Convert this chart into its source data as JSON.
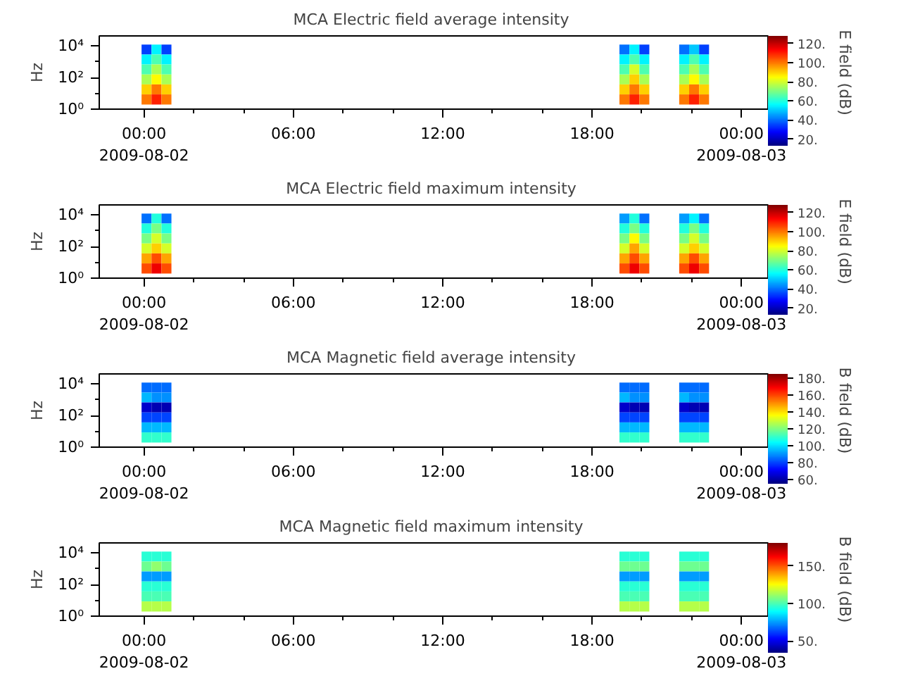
{
  "chart_data": [
    {
      "type": "heatmap",
      "title": "MCA  Electric field average intensity",
      "ylabel": "Hz",
      "clabel": "E field (dB)",
      "log": "y",
      "x": [
        "2009-08-02T00:06",
        "2009-08-02T00:30",
        "2009-08-02T00:54",
        "2009-08-02T01:18",
        "2009-08-02T01:42",
        "2009-08-02T02:06",
        "2009-08-02T02:30",
        "2009-08-02T02:54",
        "2009-08-02T03:18",
        "2009-08-02T03:42",
        "2009-08-02T04:06",
        "2009-08-02T04:30",
        "2009-08-02T04:54",
        "2009-08-02T05:18",
        "2009-08-02T05:42",
        "2009-08-02T06:06",
        "2009-08-02T06:30",
        "2009-08-02T06:54",
        "2009-08-02T07:18",
        "2009-08-02T07:42",
        "2009-08-02T08:06",
        "2009-08-02T08:30",
        "2009-08-02T08:54",
        "2009-08-02T09:18",
        "2009-08-02T09:42",
        "2009-08-02T10:06",
        "2009-08-02T10:30",
        "2009-08-02T10:54",
        "2009-08-02T11:18",
        "2009-08-02T11:42",
        "2009-08-02T12:06",
        "2009-08-02T12:30",
        "2009-08-02T12:54",
        "2009-08-02T13:18",
        "2009-08-02T13:42",
        "2009-08-02T14:06",
        "2009-08-02T14:30",
        "2009-08-02T14:54",
        "2009-08-02T15:18",
        "2009-08-02T15:42",
        "2009-08-02T16:06",
        "2009-08-02T16:30",
        "2009-08-02T16:54",
        "2009-08-02T17:18",
        "2009-08-02T17:42",
        "2009-08-02T18:06",
        "2009-08-02T18:30",
        "2009-08-02T18:54",
        "2009-08-02T19:18",
        "2009-08-02T19:42",
        "2009-08-02T20:06",
        "2009-08-02T20:30",
        "2009-08-02T20:54",
        "2009-08-02T21:18",
        "2009-08-02T21:42",
        "2009-08-02T22:06",
        "2009-08-02T22:30"
      ],
      "y": [
        6000,
        1400,
        330,
        76,
        18,
        4.1
      ],
      "cells": [
        [
          35,
          55,
          35,
          null,
          null,
          null,
          null,
          null,
          null,
          null,
          null,
          null,
          null,
          null,
          null,
          null,
          null,
          null,
          null,
          null,
          null,
          null,
          null,
          null,
          null,
          null,
          null,
          null,
          null,
          null,
          null,
          null,
          null,
          null,
          null,
          null,
          null,
          null,
          null,
          null,
          null,
          null,
          null,
          null,
          null,
          null,
          null,
          null,
          40,
          55,
          35,
          null,
          null,
          null,
          40,
          50,
          35
        ],
        [
          55,
          65,
          55,
          null,
          null,
          null,
          null,
          null,
          null,
          null,
          null,
          null,
          null,
          null,
          null,
          null,
          null,
          null,
          null,
          null,
          null,
          null,
          null,
          null,
          null,
          null,
          null,
          null,
          null,
          null,
          null,
          null,
          null,
          null,
          null,
          null,
          null,
          null,
          null,
          null,
          null,
          null,
          null,
          null,
          null,
          null,
          null,
          null,
          55,
          65,
          55,
          null,
          null,
          null,
          55,
          65,
          55
        ],
        [
          65,
          75,
          65,
          null,
          null,
          null,
          null,
          null,
          null,
          null,
          null,
          null,
          null,
          null,
          null,
          null,
          null,
          null,
          null,
          null,
          null,
          null,
          null,
          null,
          null,
          null,
          null,
          null,
          null,
          null,
          null,
          null,
          null,
          null,
          null,
          null,
          null,
          null,
          null,
          null,
          null,
          null,
          null,
          null,
          null,
          null,
          null,
          null,
          65,
          80,
          65,
          null,
          null,
          null,
          65,
          75,
          65
        ],
        [
          75,
          85,
          75,
          null,
          null,
          null,
          null,
          null,
          null,
          null,
          null,
          null,
          null,
          null,
          null,
          null,
          null,
          null,
          null,
          null,
          null,
          null,
          null,
          null,
          null,
          null,
          null,
          null,
          null,
          null,
          null,
          null,
          null,
          null,
          null,
          null,
          null,
          null,
          null,
          null,
          null,
          null,
          null,
          null,
          null,
          null,
          null,
          null,
          75,
          90,
          75,
          null,
          null,
          null,
          75,
          85,
          75
        ],
        [
          90,
          100,
          90,
          null,
          null,
          null,
          null,
          null,
          null,
          null,
          null,
          null,
          null,
          null,
          null,
          null,
          null,
          null,
          null,
          null,
          null,
          null,
          null,
          null,
          null,
          null,
          null,
          null,
          null,
          null,
          null,
          null,
          null,
          null,
          null,
          null,
          null,
          null,
          null,
          null,
          null,
          null,
          null,
          null,
          null,
          null,
          null,
          null,
          90,
          100,
          90,
          null,
          null,
          null,
          90,
          100,
          90
        ],
        [
          100,
          110,
          100,
          null,
          null,
          null,
          null,
          null,
          null,
          null,
          null,
          null,
          null,
          null,
          null,
          null,
          null,
          null,
          null,
          null,
          null,
          null,
          null,
          null,
          null,
          null,
          null,
          null,
          null,
          null,
          null,
          null,
          null,
          null,
          null,
          null,
          null,
          null,
          null,
          null,
          null,
          null,
          null,
          null,
          null,
          null,
          null,
          null,
          100,
          110,
          100,
          null,
          null,
          null,
          100,
          110,
          100
        ]
      ],
      "clim": [
        13,
        128
      ],
      "cticks": [
        {
          "value": 20,
          "label": "20."
        },
        {
          "value": 40,
          "label": "40."
        },
        {
          "value": 60,
          "label": "60."
        },
        {
          "value": 80,
          "label": "80."
        },
        {
          "value": 100,
          "label": "100."
        },
        {
          "value": 120,
          "label": "120."
        }
      ],
      "xlim": [
        "2009-08-01T22:12",
        "2009-08-03T01:04"
      ],
      "xticks": [
        {
          "value": "2009-08-02T00:00",
          "label": "00:00\n2009-08-02"
        },
        {
          "value": "2009-08-02T06:00",
          "label": "06:00"
        },
        {
          "value": "2009-08-02T12:00",
          "label": "12:00"
        },
        {
          "value": "2009-08-02T18:00",
          "label": "18:00"
        },
        {
          "value": "2009-08-03T00:00",
          "label": "00:00\n2009-08-03"
        }
      ],
      "ylim": [
        1,
        44000
      ],
      "yticks": [
        {
          "value": 1,
          "label": "10⁰"
        },
        {
          "value": 10,
          "label": null
        },
        {
          "value": 100,
          "label": "10²"
        },
        {
          "value": 1000,
          "label": null
        },
        {
          "value": 10000,
          "label": "10⁴"
        }
      ]
    },
    {
      "type": "heatmap",
      "title": "MCA  Electric field maximum intensity",
      "ylabel": "Hz",
      "clabel": "E field (dB)",
      "log": "y",
      "x": [
        "2009-08-02T00:06",
        "2009-08-02T00:30",
        "2009-08-02T00:54",
        "2009-08-02T01:18",
        "2009-08-02T01:42",
        "2009-08-02T02:06",
        "2009-08-02T02:30",
        "2009-08-02T02:54",
        "2009-08-02T03:18",
        "2009-08-02T03:42",
        "2009-08-02T04:06",
        "2009-08-02T04:30",
        "2009-08-02T04:54",
        "2009-08-02T05:18",
        "2009-08-02T05:42",
        "2009-08-02T06:06",
        "2009-08-02T06:30",
        "2009-08-02T06:54",
        "2009-08-02T07:18",
        "2009-08-02T07:42",
        "2009-08-02T08:06",
        "2009-08-02T08:30",
        "2009-08-02T08:54",
        "2009-08-02T09:18",
        "2009-08-02T09:42",
        "2009-08-02T10:06",
        "2009-08-02T10:30",
        "2009-08-02T10:54",
        "2009-08-02T11:18",
        "2009-08-02T11:42",
        "2009-08-02T12:06",
        "2009-08-02T12:30",
        "2009-08-02T12:54",
        "2009-08-02T13:18",
        "2009-08-02T13:42",
        "2009-08-02T14:06",
        "2009-08-02T14:30",
        "2009-08-02T14:54",
        "2009-08-02T15:18",
        "2009-08-02T15:42",
        "2009-08-02T16:06",
        "2009-08-02T16:30",
        "2009-08-02T16:54",
        "2009-08-02T17:18",
        "2009-08-02T17:42",
        "2009-08-02T18:06",
        "2009-08-02T18:30",
        "2009-08-02T18:54",
        "2009-08-02T19:18",
        "2009-08-02T19:42",
        "2009-08-02T20:06",
        "2009-08-02T20:30",
        "2009-08-02T20:54",
        "2009-08-02T21:18",
        "2009-08-02T21:42",
        "2009-08-02T22:06",
        "2009-08-02T22:30"
      ],
      "y": [
        6000,
        1400,
        330,
        76,
        18,
        4.1
      ],
      "cells": [
        [
          40,
          60,
          40,
          null,
          null,
          null,
          null,
          null,
          null,
          null,
          null,
          null,
          null,
          null,
          null,
          null,
          null,
          null,
          null,
          null,
          null,
          null,
          null,
          null,
          null,
          null,
          null,
          null,
          null,
          null,
          null,
          null,
          null,
          null,
          null,
          null,
          null,
          null,
          null,
          null,
          null,
          null,
          null,
          null,
          null,
          null,
          null,
          null,
          45,
          60,
          40,
          null,
          null,
          null,
          45,
          55,
          40
        ],
        [
          60,
          70,
          60,
          null,
          null,
          null,
          null,
          null,
          null,
          null,
          null,
          null,
          null,
          null,
          null,
          null,
          null,
          null,
          null,
          null,
          null,
          null,
          null,
          null,
          null,
          null,
          null,
          null,
          null,
          null,
          null,
          null,
          null,
          null,
          null,
          null,
          null,
          null,
          null,
          null,
          null,
          null,
          null,
          null,
          null,
          null,
          null,
          null,
          60,
          70,
          60,
          null,
          null,
          null,
          60,
          70,
          60
        ],
        [
          70,
          80,
          70,
          null,
          null,
          null,
          null,
          null,
          null,
          null,
          null,
          null,
          null,
          null,
          null,
          null,
          null,
          null,
          null,
          null,
          null,
          null,
          null,
          null,
          null,
          null,
          null,
          null,
          null,
          null,
          null,
          null,
          null,
          null,
          null,
          null,
          null,
          null,
          null,
          null,
          null,
          null,
          null,
          null,
          null,
          null,
          null,
          null,
          70,
          85,
          70,
          null,
          null,
          null,
          70,
          80,
          70
        ],
        [
          80,
          90,
          80,
          null,
          null,
          null,
          null,
          null,
          null,
          null,
          null,
          null,
          null,
          null,
          null,
          null,
          null,
          null,
          null,
          null,
          null,
          null,
          null,
          null,
          null,
          null,
          null,
          null,
          null,
          null,
          null,
          null,
          null,
          null,
          null,
          null,
          null,
          null,
          null,
          null,
          null,
          null,
          null,
          null,
          null,
          null,
          null,
          null,
          80,
          95,
          80,
          null,
          null,
          null,
          80,
          90,
          80
        ],
        [
          95,
          105,
          95,
          null,
          null,
          null,
          null,
          null,
          null,
          null,
          null,
          null,
          null,
          null,
          null,
          null,
          null,
          null,
          null,
          null,
          null,
          null,
          null,
          null,
          null,
          null,
          null,
          null,
          null,
          null,
          null,
          null,
          null,
          null,
          null,
          null,
          null,
          null,
          null,
          null,
          null,
          null,
          null,
          null,
          null,
          null,
          null,
          null,
          95,
          105,
          95,
          null,
          null,
          null,
          95,
          105,
          95
        ],
        [
          105,
          115,
          105,
          null,
          null,
          null,
          null,
          null,
          null,
          null,
          null,
          null,
          null,
          null,
          null,
          null,
          null,
          null,
          null,
          null,
          null,
          null,
          null,
          null,
          null,
          null,
          null,
          null,
          null,
          null,
          null,
          null,
          null,
          null,
          null,
          null,
          null,
          null,
          null,
          null,
          null,
          null,
          null,
          null,
          null,
          null,
          null,
          null,
          105,
          115,
          105,
          null,
          null,
          null,
          105,
          115,
          105
        ]
      ],
      "clim": [
        13,
        128
      ],
      "cticks": [
        {
          "value": 20,
          "label": "20."
        },
        {
          "value": 40,
          "label": "40."
        },
        {
          "value": 60,
          "label": "60."
        },
        {
          "value": 80,
          "label": "80."
        },
        {
          "value": 100,
          "label": "100."
        },
        {
          "value": 120,
          "label": "120."
        }
      ],
      "xlim": [
        "2009-08-01T22:12",
        "2009-08-03T01:04"
      ],
      "xticks": [
        {
          "value": "2009-08-02T00:00",
          "label": "00:00\n2009-08-02"
        },
        {
          "value": "2009-08-02T06:00",
          "label": "06:00"
        },
        {
          "value": "2009-08-02T12:00",
          "label": "12:00"
        },
        {
          "value": "2009-08-02T18:00",
          "label": "18:00"
        },
        {
          "value": "2009-08-03T00:00",
          "label": "00:00\n2009-08-03"
        }
      ],
      "ylim": [
        1,
        44000
      ],
      "yticks": [
        {
          "value": 1,
          "label": "10⁰"
        },
        {
          "value": 10,
          "label": null
        },
        {
          "value": 100,
          "label": "10²"
        },
        {
          "value": 1000,
          "label": null
        },
        {
          "value": 10000,
          "label": "10⁴"
        }
      ]
    },
    {
      "type": "heatmap",
      "title": "MCA  Magnetic field average intensity",
      "ylabel": "Hz",
      "clabel": "B field (dB)",
      "log": "y",
      "x": [
        "2009-08-02T00:06",
        "2009-08-02T00:30",
        "2009-08-02T00:54",
        "2009-08-02T01:18",
        "2009-08-02T01:42",
        "2009-08-02T02:06",
        "2009-08-02T02:30",
        "2009-08-02T02:54",
        "2009-08-02T03:18",
        "2009-08-02T03:42",
        "2009-08-02T04:06",
        "2009-08-02T04:30",
        "2009-08-02T04:54",
        "2009-08-02T05:18",
        "2009-08-02T05:42",
        "2009-08-02T06:06",
        "2009-08-02T06:30",
        "2009-08-02T06:54",
        "2009-08-02T07:18",
        "2009-08-02T07:42",
        "2009-08-02T08:06",
        "2009-08-02T08:30",
        "2009-08-02T08:54",
        "2009-08-02T09:18",
        "2009-08-02T09:42",
        "2009-08-02T10:06",
        "2009-08-02T10:30",
        "2009-08-02T10:54",
        "2009-08-02T11:18",
        "2009-08-02T11:42",
        "2009-08-02T12:06",
        "2009-08-02T12:30",
        "2009-08-02T12:54",
        "2009-08-02T13:18",
        "2009-08-02T13:42",
        "2009-08-02T14:06",
        "2009-08-02T14:30",
        "2009-08-02T14:54",
        "2009-08-02T15:18",
        "2009-08-02T15:42",
        "2009-08-02T16:06",
        "2009-08-02T16:30",
        "2009-08-02T16:54",
        "2009-08-02T17:18",
        "2009-08-02T17:42",
        "2009-08-02T18:06",
        "2009-08-02T18:30",
        "2009-08-02T18:54",
        "2009-08-02T19:18",
        "2009-08-02T19:42",
        "2009-08-02T20:06",
        "2009-08-02T20:30",
        "2009-08-02T20:54",
        "2009-08-02T21:18",
        "2009-08-02T21:42",
        "2009-08-02T22:06",
        "2009-08-02T22:30"
      ],
      "y": [
        6000,
        1400,
        330,
        76,
        18,
        4.1
      ],
      "cells": [
        [
          85,
          85,
          85,
          null,
          null,
          null,
          null,
          null,
          null,
          null,
          null,
          null,
          null,
          null,
          null,
          null,
          null,
          null,
          null,
          null,
          null,
          null,
          null,
          null,
          null,
          null,
          null,
          null,
          null,
          null,
          null,
          null,
          null,
          null,
          null,
          null,
          null,
          null,
          null,
          null,
          null,
          null,
          null,
          null,
          null,
          null,
          null,
          null,
          85,
          85,
          85,
          null,
          null,
          null,
          85,
          85,
          85
        ],
        [
          95,
          90,
          90,
          null,
          null,
          null,
          null,
          null,
          null,
          null,
          null,
          null,
          null,
          null,
          null,
          null,
          null,
          null,
          null,
          null,
          null,
          null,
          null,
          null,
          null,
          null,
          null,
          null,
          null,
          null,
          null,
          null,
          null,
          null,
          null,
          null,
          null,
          null,
          null,
          null,
          null,
          null,
          null,
          null,
          null,
          null,
          null,
          null,
          95,
          90,
          90,
          null,
          null,
          null,
          95,
          90,
          90
        ],
        [
          65,
          62,
          62,
          null,
          null,
          null,
          null,
          null,
          null,
          null,
          null,
          null,
          null,
          null,
          null,
          null,
          null,
          null,
          null,
          null,
          null,
          null,
          null,
          null,
          null,
          null,
          null,
          null,
          null,
          null,
          null,
          null,
          null,
          null,
          null,
          null,
          null,
          null,
          null,
          null,
          null,
          null,
          null,
          null,
          null,
          null,
          null,
          null,
          65,
          62,
          62,
          null,
          null,
          null,
          65,
          62,
          62
        ],
        [
          80,
          80,
          80,
          null,
          null,
          null,
          null,
          null,
          null,
          null,
          null,
          null,
          null,
          null,
          null,
          null,
          null,
          null,
          null,
          null,
          null,
          null,
          null,
          null,
          null,
          null,
          null,
          null,
          null,
          null,
          null,
          null,
          null,
          null,
          null,
          null,
          null,
          null,
          null,
          null,
          null,
          null,
          null,
          null,
          null,
          null,
          null,
          null,
          80,
          80,
          80,
          null,
          null,
          null,
          80,
          80,
          80
        ],
        [
          95,
          95,
          95,
          null,
          null,
          null,
          null,
          null,
          null,
          null,
          null,
          null,
          null,
          null,
          null,
          null,
          null,
          null,
          null,
          null,
          null,
          null,
          null,
          null,
          null,
          null,
          null,
          null,
          null,
          null,
          null,
          null,
          null,
          null,
          null,
          null,
          null,
          null,
          null,
          null,
          null,
          null,
          null,
          null,
          null,
          null,
          null,
          null,
          95,
          95,
          95,
          null,
          null,
          null,
          95,
          95,
          95
        ],
        [
          110,
          110,
          110,
          null,
          null,
          null,
          null,
          null,
          null,
          null,
          null,
          null,
          null,
          null,
          null,
          null,
          null,
          null,
          null,
          null,
          null,
          null,
          null,
          null,
          null,
          null,
          null,
          null,
          null,
          null,
          null,
          null,
          null,
          null,
          null,
          null,
          null,
          null,
          null,
          null,
          null,
          null,
          null,
          null,
          null,
          null,
          null,
          null,
          110,
          110,
          110,
          null,
          null,
          null,
          110,
          110,
          110
        ]
      ],
      "clim": [
        55,
        185
      ],
      "cticks": [
        {
          "value": 60,
          "label": "60."
        },
        {
          "value": 80,
          "label": "80."
        },
        {
          "value": 100,
          "label": "100."
        },
        {
          "value": 120,
          "label": "120."
        },
        {
          "value": 140,
          "label": "140."
        },
        {
          "value": 160,
          "label": "160."
        },
        {
          "value": 180,
          "label": "180."
        }
      ],
      "xlim": [
        "2009-08-01T22:12",
        "2009-08-03T01:04"
      ],
      "xticks": [
        {
          "value": "2009-08-02T00:00",
          "label": "00:00\n2009-08-02"
        },
        {
          "value": "2009-08-02T06:00",
          "label": "06:00"
        },
        {
          "value": "2009-08-02T12:00",
          "label": "12:00"
        },
        {
          "value": "2009-08-02T18:00",
          "label": "18:00"
        },
        {
          "value": "2009-08-03T00:00",
          "label": "00:00\n2009-08-03"
        }
      ],
      "ylim": [
        1,
        44000
      ],
      "yticks": [
        {
          "value": 1,
          "label": "10⁰"
        },
        {
          "value": 10,
          "label": null
        },
        {
          "value": 100,
          "label": "10²"
        },
        {
          "value": 1000,
          "label": null
        },
        {
          "value": 10000,
          "label": "10⁴"
        }
      ]
    },
    {
      "type": "heatmap",
      "title": "MCA  Magnetic field maximum intensity",
      "ylabel": "Hz",
      "clabel": "B field (dB)",
      "log": "y",
      "x": [
        "2009-08-02T00:06",
        "2009-08-02T00:30",
        "2009-08-02T00:54",
        "2009-08-02T01:18",
        "2009-08-02T01:42",
        "2009-08-02T02:06",
        "2009-08-02T02:30",
        "2009-08-02T02:54",
        "2009-08-02T03:18",
        "2009-08-02T03:42",
        "2009-08-02T04:06",
        "2009-08-02T04:30",
        "2009-08-02T04:54",
        "2009-08-02T05:18",
        "2009-08-02T05:42",
        "2009-08-02T06:06",
        "2009-08-02T06:30",
        "2009-08-02T06:54",
        "2009-08-02T07:18",
        "2009-08-02T07:42",
        "2009-08-02T08:06",
        "2009-08-02T08:30",
        "2009-08-02T08:54",
        "2009-08-02T09:18",
        "2009-08-02T09:42",
        "2009-08-02T10:06",
        "2009-08-02T10:30",
        "2009-08-02T10:54",
        "2009-08-02T11:18",
        "2009-08-02T11:42",
        "2009-08-02T12:06",
        "2009-08-02T12:30",
        "2009-08-02T12:54",
        "2009-08-02T13:18",
        "2009-08-02T13:42",
        "2009-08-02T14:06",
        "2009-08-02T14:30",
        "2009-08-02T14:54",
        "2009-08-02T15:18",
        "2009-08-02T15:42",
        "2009-08-02T16:06",
        "2009-08-02T16:30",
        "2009-08-02T16:54",
        "2009-08-02T17:18",
        "2009-08-02T17:42",
        "2009-08-02T18:06",
        "2009-08-02T18:30",
        "2009-08-02T18:54",
        "2009-08-02T19:18",
        "2009-08-02T19:42",
        "2009-08-02T20:06",
        "2009-08-02T20:30",
        "2009-08-02T20:54",
        "2009-08-02T21:18",
        "2009-08-02T21:42",
        "2009-08-02T22:06",
        "2009-08-02T22:30"
      ],
      "y": [
        6000,
        1400,
        330,
        76,
        18,
        4.1
      ],
      "cells": [
        [
          95,
          95,
          95,
          null,
          null,
          null,
          null,
          null,
          null,
          null,
          null,
          null,
          null,
          null,
          null,
          null,
          null,
          null,
          null,
          null,
          null,
          null,
          null,
          null,
          null,
          null,
          null,
          null,
          null,
          null,
          null,
          null,
          null,
          null,
          null,
          null,
          null,
          null,
          null,
          null,
          null,
          null,
          null,
          null,
          null,
          null,
          null,
          null,
          95,
          95,
          95,
          null,
          null,
          null,
          95,
          95,
          95
        ],
        [
          105,
          110,
          105,
          null,
          null,
          null,
          null,
          null,
          null,
          null,
          null,
          null,
          null,
          null,
          null,
          null,
          null,
          null,
          null,
          null,
          null,
          null,
          null,
          null,
          null,
          null,
          null,
          null,
          null,
          null,
          null,
          null,
          null,
          null,
          null,
          null,
          null,
          null,
          null,
          null,
          null,
          null,
          null,
          null,
          null,
          null,
          null,
          null,
          105,
          105,
          105,
          null,
          null,
          null,
          105,
          105,
          105
        ],
        [
          75,
          75,
          75,
          null,
          null,
          null,
          null,
          null,
          null,
          null,
          null,
          null,
          null,
          null,
          null,
          null,
          null,
          null,
          null,
          null,
          null,
          null,
          null,
          null,
          null,
          null,
          null,
          null,
          null,
          null,
          null,
          null,
          null,
          null,
          null,
          null,
          null,
          null,
          null,
          null,
          null,
          null,
          null,
          null,
          null,
          null,
          null,
          null,
          75,
          75,
          75,
          null,
          null,
          null,
          75,
          75,
          75
        ],
        [
          95,
          95,
          95,
          null,
          null,
          null,
          null,
          null,
          null,
          null,
          null,
          null,
          null,
          null,
          null,
          null,
          null,
          null,
          null,
          null,
          null,
          null,
          null,
          null,
          null,
          null,
          null,
          null,
          null,
          null,
          null,
          null,
          null,
          null,
          null,
          null,
          null,
          null,
          null,
          null,
          null,
          null,
          null,
          null,
          null,
          null,
          null,
          null,
          95,
          95,
          95,
          null,
          null,
          null,
          95,
          95,
          95
        ],
        [
          100,
          100,
          100,
          null,
          null,
          null,
          null,
          null,
          null,
          null,
          null,
          null,
          null,
          null,
          null,
          null,
          null,
          null,
          null,
          null,
          null,
          null,
          null,
          null,
          null,
          null,
          null,
          null,
          null,
          null,
          null,
          null,
          null,
          null,
          null,
          null,
          null,
          null,
          null,
          null,
          null,
          null,
          null,
          null,
          null,
          null,
          null,
          null,
          100,
          100,
          100,
          null,
          null,
          null,
          100,
          100,
          100
        ],
        [
          115,
          115,
          115,
          null,
          null,
          null,
          null,
          null,
          null,
          null,
          null,
          null,
          null,
          null,
          null,
          null,
          null,
          null,
          null,
          null,
          null,
          null,
          null,
          null,
          null,
          null,
          null,
          null,
          null,
          null,
          null,
          null,
          null,
          null,
          null,
          null,
          null,
          null,
          null,
          null,
          null,
          null,
          null,
          null,
          null,
          null,
          null,
          null,
          115,
          115,
          115,
          null,
          null,
          null,
          115,
          115,
          115
        ]
      ],
      "clim": [
        34,
        181
      ],
      "cticks": [
        {
          "value": 50,
          "label": "50."
        },
        {
          "value": 100,
          "label": "100."
        },
        {
          "value": 150,
          "label": "150."
        }
      ],
      "xlim": [
        "2009-08-01T22:12",
        "2009-08-03T01:04"
      ],
      "xticks": [
        {
          "value": "2009-08-02T00:00",
          "label": "00:00\n2009-08-02"
        },
        {
          "value": "2009-08-02T06:00",
          "label": "06:00"
        },
        {
          "value": "2009-08-02T12:00",
          "label": "12:00"
        },
        {
          "value": "2009-08-02T18:00",
          "label": "18:00"
        },
        {
          "value": "2009-08-03T00:00",
          "label": "00:00\n2009-08-03"
        }
      ],
      "ylim": [
        1,
        44000
      ],
      "yticks": [
        {
          "value": 1,
          "label": "10⁰"
        },
        {
          "value": 10,
          "label": null
        },
        {
          "value": 100,
          "label": "10²"
        },
        {
          "value": 1000,
          "label": null
        },
        {
          "value": 10000,
          "label": "10⁴"
        }
      ]
    }
  ]
}
